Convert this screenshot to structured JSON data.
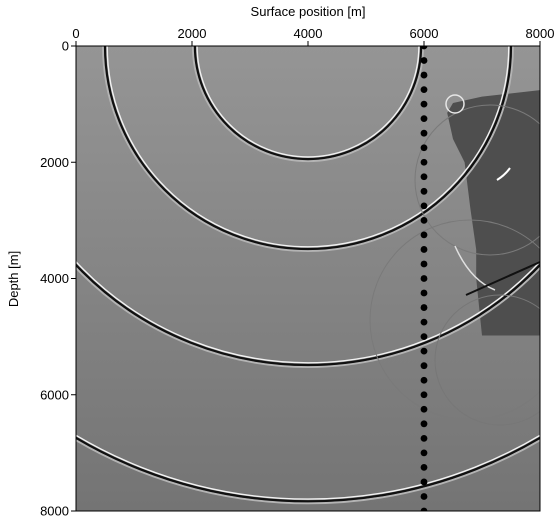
{
  "chart_data": {
    "type": "heatmap",
    "title": "",
    "xlabel": "Surface position [m]",
    "ylabel": "Depth [m]",
    "xlim": [
      0,
      8000
    ],
    "ylim": [
      0,
      8000
    ],
    "x_ticks": [
      "0",
      "2000",
      "4000",
      "6000",
      "8000"
    ],
    "y_ticks": [
      "0",
      "2000",
      "4000",
      "6000",
      "8000"
    ],
    "x_axis_position": "top",
    "y_axis_inverted": true,
    "grid": false,
    "background_color": "#8c8c8c",
    "body_color": "#4e4e4e",
    "source": {
      "x": 4000,
      "y": 0
    },
    "wavefront_radii": [
      1950,
      3500,
      5500,
      7850
    ],
    "salt_body_outline": [
      [
        6500,
        980
      ],
      [
        7000,
        870
      ],
      [
        8000,
        760
      ],
      [
        8000,
        4980
      ],
      [
        7000,
        4980
      ],
      [
        6900,
        4000
      ],
      [
        6900,
        3500
      ],
      [
        6800,
        2800
      ],
      [
        6700,
        2000
      ],
      [
        6500,
        1600
      ],
      [
        6400,
        1150
      ]
    ],
    "receiver_line": {
      "x": 6000,
      "depths": [
        0,
        250,
        500,
        750,
        1000,
        1250,
        1500,
        1750,
        2000,
        2250,
        2500,
        2750,
        3000,
        3250,
        3500,
        3750,
        4000,
        4250,
        4500,
        4750,
        5000,
        5250,
        5500,
        5750,
        6000,
        6250,
        6500,
        6750,
        7000,
        7250,
        7500,
        7750,
        8000
      ],
      "color": "#000000"
    }
  }
}
